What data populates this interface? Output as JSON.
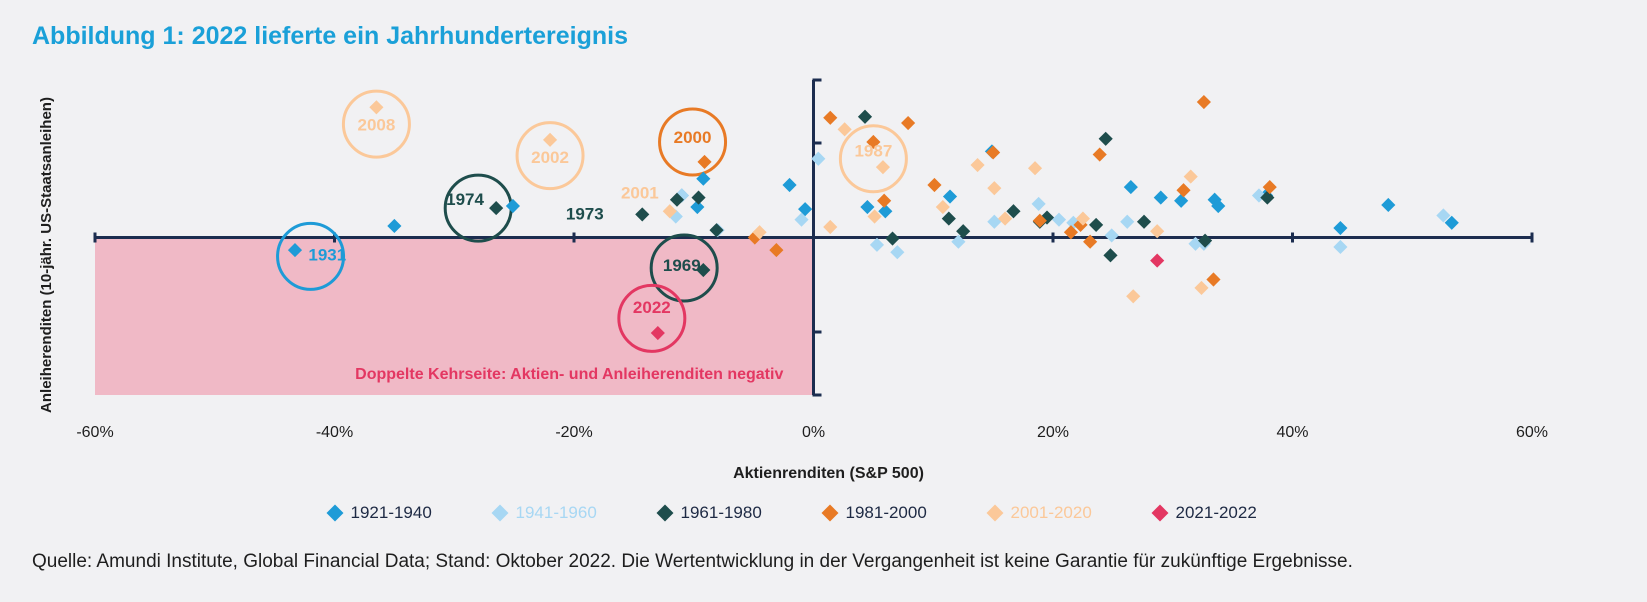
{
  "title": "Abbildung 1: 2022 lieferte ein Jahrhundertereignis",
  "source": "Quelle: Amundi Institute, Global Financial Data; Stand: Oktober 2022. Die Wertentwicklung in der Vergangenheit ist keine Garantie für zukünftige Ergebnisse.",
  "chart_data": {
    "type": "scatter",
    "xlabel": "Aktienrenditen (S&P 500)",
    "ylabel": "Anleiherenditen (10-jähr. US-Staatsanleihen)",
    "xlim": [
      -60,
      60
    ],
    "ylim": [
      -15,
      15
    ],
    "x_ticks": [
      -60,
      -40,
      -20,
      0,
      20,
      40,
      60
    ],
    "x_tick_labels": [
      "-60%",
      "-40%",
      "-20%",
      "0%",
      "20%",
      "40%",
      "60%"
    ],
    "y_ticks": [
      -9,
      0,
      9
    ],
    "grid": false,
    "legend_position": "bottom",
    "negative_zone_label": "Doppelte Kehrseite: Aktien- und Anleiherenditen negativ",
    "negative_zone_color": "#f0b9c6",
    "series": [
      {
        "name": "1921-1940",
        "color": "#1e9bd7",
        "points": [
          [
            -43.3,
            -1.2
          ],
          [
            -35,
            1.1
          ],
          [
            -25.1,
            3
          ],
          [
            -9.2,
            5.6
          ],
          [
            -9.7,
            2.9
          ],
          [
            -11,
            4
          ],
          [
            -2,
            5
          ],
          [
            -0.7,
            2.7
          ],
          [
            4.5,
            2.9
          ],
          [
            6,
            2.5
          ],
          [
            11.4,
            3.9
          ],
          [
            14.9,
            8.2
          ],
          [
            26.5,
            4.8
          ],
          [
            29,
            3.8
          ],
          [
            30.7,
            3.5
          ],
          [
            33.5,
            3.6
          ],
          [
            33.8,
            3
          ],
          [
            37.8,
            4
          ],
          [
            44,
            0.9
          ],
          [
            48,
            3.1
          ],
          [
            53.3,
            1.4
          ]
        ]
      },
      {
        "name": "1941-1960",
        "color": "#a7d7f3",
        "points": [
          [
            -11.5,
            2
          ],
          [
            -11,
            4
          ],
          [
            -8,
            0.7
          ],
          [
            -1,
            1.7
          ],
          [
            0.4,
            7.5
          ],
          [
            5.3,
            -0.7
          ],
          [
            7,
            -1.4
          ],
          [
            12.1,
            -0.4
          ],
          [
            15.1,
            1.5
          ],
          [
            18.8,
            3.2
          ],
          [
            20.5,
            1.7
          ],
          [
            21.7,
            1.4
          ],
          [
            24.9,
            0.2
          ],
          [
            26.2,
            1.5
          ],
          [
            31.9,
            -0.6
          ],
          [
            32.6,
            -0.6
          ],
          [
            37.2,
            4
          ],
          [
            52.6,
            2.1
          ],
          [
            44,
            -0.9
          ]
        ]
      },
      {
        "name": "1961-1980",
        "color": "#1e4d4c",
        "points": [
          [
            -26.5,
            2.8
          ],
          [
            -14.3,
            2.2
          ],
          [
            -11.4,
            3.6
          ],
          [
            -9.6,
            3.8
          ],
          [
            -8.1,
            0.7
          ],
          [
            -9.2,
            -3.1
          ],
          [
            4.3,
            11.5
          ],
          [
            6.6,
            -0.1
          ],
          [
            11.3,
            1.8
          ],
          [
            12.5,
            0.6
          ],
          [
            16.7,
            2.5
          ],
          [
            18.9,
            1.5
          ],
          [
            19.5,
            1.9
          ],
          [
            23.6,
            1.2
          ],
          [
            24.4,
            9.4
          ],
          [
            24.8,
            -1.7
          ],
          [
            27.6,
            1.5
          ],
          [
            32.7,
            -0.3
          ],
          [
            37.9,
            3.8
          ]
        ]
      },
      {
        "name": "1981-2000",
        "color": "#e87a25",
        "points": [
          [
            -9.1,
            7.2
          ],
          [
            -4.9,
            0
          ],
          [
            -3.1,
            -1.2
          ],
          [
            1.4,
            11.4
          ],
          [
            5,
            9.1
          ],
          [
            5.9,
            3.5
          ],
          [
            7.9,
            10.9
          ],
          [
            10.1,
            5
          ],
          [
            15,
            8.1
          ],
          [
            18.9,
            1.6
          ],
          [
            21.5,
            0.5
          ],
          [
            22.3,
            1.2
          ],
          [
            23.1,
            -0.4
          ],
          [
            23.9,
            7.9
          ],
          [
            30.9,
            4.5
          ],
          [
            32.6,
            12.9
          ],
          [
            33.4,
            -4
          ],
          [
            38.1,
            4.8
          ]
        ]
      },
      {
        "name": "2001-2020",
        "color": "#fbc899",
        "points": [
          [
            -36.5,
            12.4
          ],
          [
            -22,
            9.3
          ],
          [
            -12,
            2.5
          ],
          [
            -4.5,
            0.5
          ],
          [
            1.4,
            1
          ],
          [
            2.6,
            10.3
          ],
          [
            5.1,
            2
          ],
          [
            5.8,
            6.7
          ],
          [
            10.8,
            2.9
          ],
          [
            13.7,
            6.9
          ],
          [
            15.1,
            4.7
          ],
          [
            16,
            1.8
          ],
          [
            18.5,
            6.6
          ],
          [
            22.5,
            1.8
          ],
          [
            26.7,
            -5.6
          ],
          [
            28.7,
            0.6
          ],
          [
            31.5,
            5.8
          ],
          [
            32.4,
            -4.8
          ]
        ]
      },
      {
        "name": "2021-2022",
        "color": "#e33762",
        "points": [
          [
            -13,
            -9.1
          ],
          [
            28.7,
            -2.2
          ]
        ]
      }
    ],
    "annotations": [
      {
        "text": "2008",
        "x": -36.5,
        "y": 10.2,
        "color": "#fbc899",
        "circle": true,
        "cx": -36.5,
        "cy": 10.8
      },
      {
        "text": "2002",
        "x": -22,
        "y": 7.1,
        "color": "#fbc899",
        "circle": true,
        "cx": -22,
        "cy": 7.8
      },
      {
        "text": "2000",
        "x": -10.1,
        "y": 9.0,
        "color": "#e87a25",
        "circle": true,
        "cx": -10.1,
        "cy": 9.1
      },
      {
        "text": "1987",
        "x": 5,
        "y": 7.7,
        "color": "#fbc899",
        "circle": true,
        "cx": 5,
        "cy": 7.5
      },
      {
        "text": "1974",
        "x": -29.1,
        "y": 3.1,
        "color": "#1e4d4c",
        "circle": true,
        "cx": -28,
        "cy": 2.8
      },
      {
        "text": "1931",
        "x": -40.6,
        "y": -2.2,
        "color": "#1e9bd7",
        "circle": true,
        "cx": -42,
        "cy": -1.8
      },
      {
        "text": "1969",
        "x": -11,
        "y": -3.2,
        "color": "#1e4d4c",
        "circle": true,
        "cx": -10.8,
        "cy": -2.9
      },
      {
        "text": "2022",
        "x": -13.5,
        "y": -7.2,
        "color": "#e33762",
        "circle": true,
        "cx": -13.5,
        "cy": -7.7
      },
      {
        "text": "2001",
        "x": -14.5,
        "y": 3.7,
        "color": "#fbc899",
        "circle": false
      },
      {
        "text": "1973",
        "x": -19.1,
        "y": 1.7,
        "color": "#1e4d4c",
        "circle": false
      }
    ]
  }
}
